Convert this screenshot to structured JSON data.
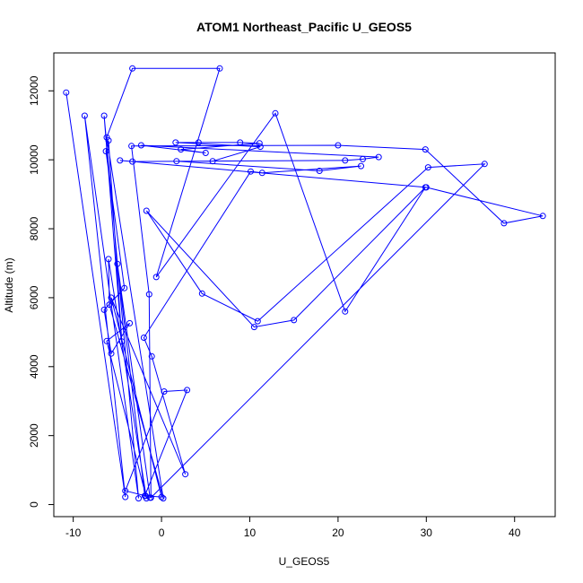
{
  "chart_data": {
    "type": "line",
    "title": "ATOM1 Northeast_Pacific U_GEOS5",
    "xlabel": "U_GEOS5",
    "ylabel": "Altitude (m)",
    "xlim": [
      -12.2,
      44.6
    ],
    "ylim": [
      -350,
      13100
    ],
    "x_ticks": [
      -10,
      0,
      10,
      20,
      30,
      40
    ],
    "y_ticks": [
      0,
      2000,
      4000,
      6000,
      8000,
      10000,
      12000
    ],
    "color": "#0000ff",
    "marker": "open-circle",
    "series": [
      {
        "points": [
          [
            -10.8,
            11950
          ],
          [
            -4.1,
            220
          ],
          [
            -8.7,
            11280
          ],
          [
            -2.6,
            180
          ],
          [
            -6.5,
            11280
          ],
          [
            -4.5,
            4730
          ],
          [
            -6.0,
            10560
          ],
          [
            -6.3,
            10250
          ],
          [
            -4.2,
            6280
          ],
          [
            -6.5,
            5650
          ],
          [
            -5.7,
            4380
          ],
          [
            -3.6,
            5260
          ],
          [
            -6.2,
            4740
          ],
          [
            -1.7,
            180
          ],
          [
            -6.0,
            7120
          ],
          [
            -5.9,
            5800
          ],
          [
            0.2,
            180
          ],
          [
            -6.2,
            10650
          ],
          [
            -3.3,
            12650
          ],
          [
            6.6,
            12650
          ],
          [
            -0.6,
            6600
          ],
          [
            12.9,
            11350
          ],
          [
            20.8,
            5600
          ],
          [
            29.9,
            9200
          ],
          [
            15.0,
            5350
          ],
          [
            10.5,
            5150
          ],
          [
            -1.7,
            8520
          ],
          [
            4.6,
            6120
          ],
          [
            10.9,
            5320
          ],
          [
            30.2,
            9780
          ],
          [
            36.6,
            9880
          ],
          [
            -1.2,
            200
          ],
          [
            -1.4,
            6100
          ],
          [
            -3.4,
            10400
          ],
          [
            20.0,
            10420
          ],
          [
            29.9,
            10300
          ],
          [
            38.8,
            8160
          ],
          [
            43.2,
            8370
          ],
          [
            30.0,
            9200
          ],
          [
            -4.7,
            9980
          ],
          [
            -3.3,
            9950
          ],
          [
            20.8,
            9980
          ],
          [
            22.8,
            10020
          ],
          [
            24.6,
            10080
          ],
          [
            -2.3,
            10420
          ],
          [
            5.0,
            10200
          ],
          [
            2.2,
            10300
          ],
          [
            11.1,
            10480
          ],
          [
            8.9,
            10500
          ],
          [
            4.2,
            10500
          ],
          [
            1.6,
            10500
          ],
          [
            11.2,
            10380
          ],
          [
            5.8,
            9960
          ],
          [
            1.7,
            9960
          ],
          [
            17.9,
            9680
          ],
          [
            22.6,
            9820
          ],
          [
            11.4,
            9620
          ],
          [
            10.1,
            9660
          ],
          [
            -2.0,
            4840
          ],
          [
            -1.1,
            4300
          ],
          [
            2.7,
            880
          ],
          [
            -5.7,
            6000
          ],
          [
            0.0,
            220
          ],
          [
            -1.8,
            250
          ],
          [
            -4.1,
            400
          ],
          [
            0.3,
            3280
          ],
          [
            2.9,
            3320
          ],
          [
            -1.9,
            250
          ],
          [
            -5.0,
            6980
          ],
          [
            -1.3,
            200
          ]
        ]
      }
    ]
  }
}
